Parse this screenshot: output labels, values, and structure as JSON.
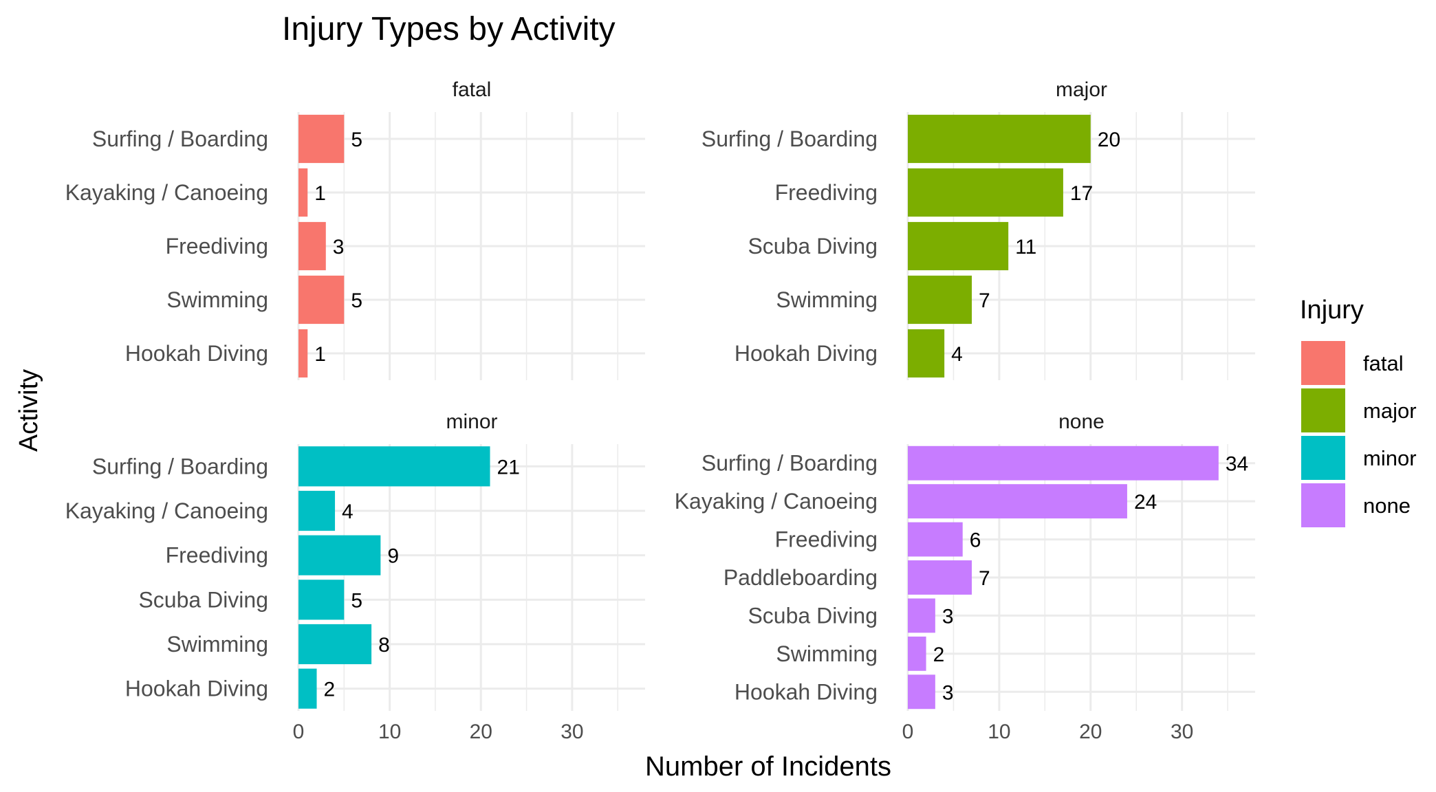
{
  "chart_data": {
    "type": "bar",
    "orientation": "horizontal",
    "title": "Injury Types by Activity",
    "xlabel": "Number of Incidents",
    "ylabel": "Activity",
    "xlim": [
      0,
      38
    ],
    "x_ticks": [
      0,
      10,
      20,
      30
    ],
    "grid": true,
    "legend": {
      "title": "Injury",
      "placement": "right",
      "items": [
        {
          "label": "fatal",
          "color": "#F8766D"
        },
        {
          "label": "major",
          "color": "#7CAE00"
        },
        {
          "label": "minor",
          "color": "#00BFC4"
        },
        {
          "label": "none",
          "color": "#C77CFF"
        }
      ]
    },
    "facets": [
      {
        "label": "fatal",
        "color": "#F8766D",
        "categories": [
          "Surfing / Boarding",
          "Kayaking / Canoeing",
          "Freediving",
          "Swimming",
          "Hookah Diving"
        ],
        "values": [
          5,
          1,
          3,
          5,
          1
        ]
      },
      {
        "label": "major",
        "color": "#7CAE00",
        "categories": [
          "Surfing / Boarding",
          "Freediving",
          "Scuba Diving",
          "Swimming",
          "Hookah Diving"
        ],
        "values": [
          20,
          17,
          11,
          7,
          4
        ]
      },
      {
        "label": "minor",
        "color": "#00BFC4",
        "categories": [
          "Surfing / Boarding",
          "Kayaking / Canoeing",
          "Freediving",
          "Scuba Diving",
          "Swimming",
          "Hookah Diving"
        ],
        "values": [
          21,
          4,
          9,
          5,
          8,
          2
        ]
      },
      {
        "label": "none",
        "color": "#C77CFF",
        "categories": [
          "Surfing / Boarding",
          "Kayaking / Canoeing",
          "Freediving",
          "Paddleboarding",
          "Scuba Diving",
          "Swimming",
          "Hookah Diving"
        ],
        "values": [
          34,
          24,
          6,
          7,
          3,
          2,
          3
        ]
      }
    ]
  }
}
